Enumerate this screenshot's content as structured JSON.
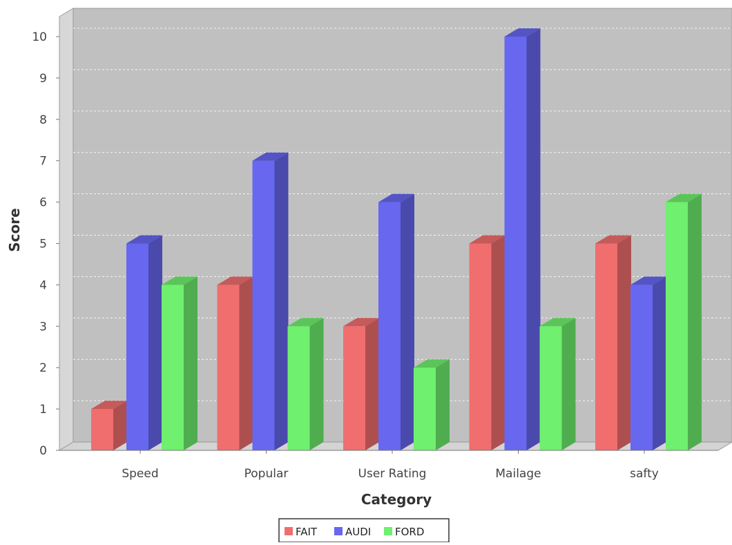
{
  "chart_data": {
    "type": "bar",
    "title": "",
    "xlabel": "Category",
    "ylabel": "Score",
    "categories": [
      "Speed",
      "Popular",
      "User Rating",
      "Mailage",
      "safty"
    ],
    "series": [
      {
        "name": "FAIT",
        "values": [
          1,
          4,
          3,
          5,
          5
        ],
        "color": "#f06e6e"
      },
      {
        "name": "AUDI",
        "values": [
          5,
          7,
          6,
          10,
          4
        ],
        "color": "#6767ef"
      },
      {
        "name": "FORD",
        "values": [
          4,
          3,
          2,
          3,
          6
        ],
        "color": "#6ff06e"
      }
    ],
    "ylim": [
      0,
      10
    ],
    "yticks": [
      "0",
      "1",
      "2",
      "3",
      "4",
      "5",
      "6",
      "7",
      "8",
      "9",
      "10"
    ],
    "grid": true,
    "style": "3d",
    "legend_position": "bottom",
    "plot_background": "#c0c0c0"
  }
}
